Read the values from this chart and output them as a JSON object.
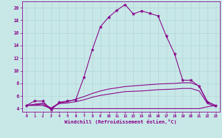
{
  "xlabel": "Windchill (Refroidissement éolien,°C)",
  "background_color": "#c8e8e8",
  "grid_color": "#b0d4d4",
  "line_color": "#880088",
  "x": [
    0,
    1,
    2,
    3,
    4,
    5,
    6,
    7,
    8,
    9,
    10,
    11,
    12,
    13,
    14,
    15,
    16,
    17,
    18,
    19,
    20,
    21,
    22,
    23
  ],
  "line_main": [
    4.5,
    5.2,
    5.2,
    3.8,
    5.0,
    5.2,
    5.4,
    9.0,
    13.3,
    17.0,
    18.5,
    19.6,
    20.5,
    19.0,
    19.5,
    19.1,
    18.7,
    15.5,
    12.7,
    8.5,
    8.5,
    7.5,
    5.0,
    4.5
  ],
  "line_upper": [
    4.5,
    4.7,
    4.9,
    4.1,
    4.9,
    5.1,
    5.5,
    5.9,
    6.4,
    6.8,
    7.1,
    7.3,
    7.5,
    7.6,
    7.7,
    7.8,
    7.9,
    7.95,
    8.0,
    8.1,
    8.1,
    7.6,
    5.1,
    4.5
  ],
  "line_mid": [
    4.5,
    4.6,
    4.7,
    4.0,
    4.8,
    4.9,
    5.1,
    5.4,
    5.8,
    6.1,
    6.3,
    6.5,
    6.7,
    6.75,
    6.8,
    6.9,
    7.0,
    7.05,
    7.1,
    7.2,
    7.2,
    6.8,
    4.8,
    4.3
  ],
  "line_flat": [
    4.5,
    4.5,
    4.5,
    4.0,
    4.0,
    4.0,
    4.0,
    4.0,
    4.0,
    4.0,
    4.0,
    4.0,
    4.0,
    4.0,
    4.0,
    4.0,
    4.0,
    4.0,
    4.0,
    4.0,
    4.0,
    4.0,
    4.3,
    4.5
  ],
  "ylim": [
    3.5,
    21.0
  ],
  "yticks": [
    4,
    6,
    8,
    10,
    12,
    14,
    16,
    18,
    20
  ],
  "xlim": [
    -0.5,
    23.5
  ],
  "xticks": [
    0,
    1,
    2,
    3,
    4,
    5,
    6,
    7,
    8,
    9,
    10,
    11,
    12,
    13,
    14,
    15,
    16,
    17,
    18,
    19,
    20,
    21,
    22,
    23
  ]
}
